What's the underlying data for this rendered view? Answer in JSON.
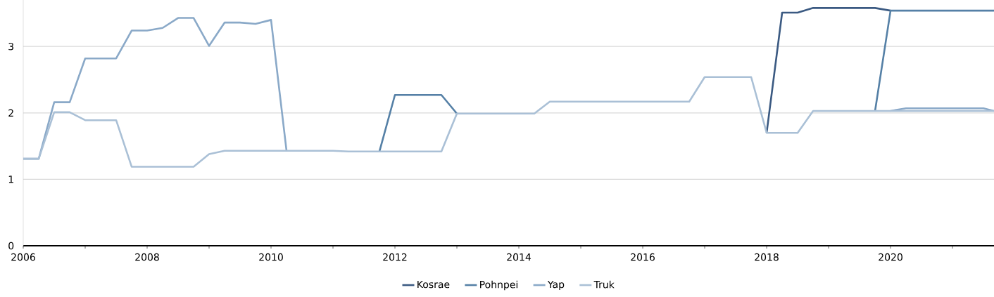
{
  "chart_data": {
    "type": "line",
    "x": [
      2006,
      2006.25,
      2006.5,
      2006.75,
      2007,
      2007.25,
      2007.5,
      2007.75,
      2008,
      2008.25,
      2008.5,
      2008.75,
      2009,
      2009.25,
      2009.5,
      2009.75,
      2010,
      2010.25,
      2010.5,
      2010.75,
      2011,
      2011.25,
      2011.5,
      2011.75,
      2012,
      2012.25,
      2012.5,
      2012.75,
      2013,
      2013.25,
      2013.5,
      2013.75,
      2014,
      2014.25,
      2014.5,
      2014.75,
      2015,
      2015.25,
      2015.5,
      2015.75,
      2016,
      2016.25,
      2016.5,
      2016.75,
      2017,
      2017.25,
      2017.5,
      2017.75,
      2018,
      2018.25,
      2018.5,
      2018.75,
      2019,
      2019.25,
      2019.5,
      2019.75,
      2020,
      2020.25,
      2020.5,
      2020.75,
      2021,
      2021.25,
      2021.5,
      2021.67
    ],
    "series": [
      {
        "name": "Kosrae",
        "color": "#3b5a82",
        "values": [
          null,
          null,
          null,
          null,
          null,
          null,
          null,
          null,
          null,
          null,
          null,
          null,
          null,
          null,
          null,
          null,
          null,
          null,
          null,
          null,
          null,
          null,
          null,
          null,
          null,
          null,
          null,
          null,
          null,
          null,
          null,
          null,
          null,
          null,
          null,
          null,
          null,
          null,
          null,
          null,
          null,
          null,
          null,
          null,
          null,
          null,
          null,
          null,
          1.7,
          3.51,
          3.51,
          3.58,
          3.58,
          3.58,
          3.58,
          3.58,
          3.54,
          null,
          null,
          null,
          null,
          null,
          null,
          null
        ]
      },
      {
        "name": "Pohnpei",
        "color": "#5580a6",
        "values": [
          null,
          null,
          null,
          null,
          null,
          null,
          null,
          null,
          null,
          null,
          null,
          null,
          null,
          null,
          null,
          null,
          null,
          null,
          null,
          null,
          null,
          null,
          null,
          1.42,
          2.27,
          2.27,
          2.27,
          2.27,
          1.99,
          null,
          null,
          null,
          null,
          null,
          null,
          null,
          null,
          null,
          null,
          null,
          null,
          null,
          null,
          null,
          null,
          null,
          null,
          null,
          null,
          null,
          null,
          null,
          null,
          null,
          null,
          2.03,
          3.54,
          3.54,
          3.54,
          3.54,
          3.54,
          3.54,
          3.54,
          3.54
        ]
      },
      {
        "name": "Yap",
        "color": "#8aa9c8",
        "values": [
          1.31,
          1.31,
          2.16,
          2.16,
          2.82,
          2.82,
          2.82,
          3.24,
          3.24,
          3.28,
          3.43,
          3.43,
          3.01,
          3.36,
          3.36,
          3.34,
          3.4,
          1.43,
          null,
          null,
          null,
          null,
          null,
          null,
          null,
          null,
          null,
          null,
          null,
          null,
          null,
          null,
          null,
          null,
          null,
          null,
          null,
          null,
          null,
          null,
          null,
          null,
          null,
          null,
          null,
          null,
          null,
          null,
          null,
          null,
          null,
          null,
          null,
          null,
          null,
          null,
          2.03,
          2.07,
          2.07,
          2.07,
          2.07,
          2.07,
          2.07,
          2.03
        ]
      },
      {
        "name": "Truk",
        "color": "#aac0d6",
        "values": [
          1.31,
          1.31,
          2.01,
          2.01,
          1.89,
          1.89,
          1.89,
          1.19,
          1.19,
          1.19,
          1.19,
          1.19,
          1.38,
          1.43,
          1.43,
          1.43,
          1.43,
          1.43,
          1.43,
          1.43,
          1.43,
          1.42,
          1.42,
          1.42,
          1.42,
          1.42,
          1.42,
          1.42,
          1.99,
          1.99,
          1.99,
          1.99,
          1.99,
          1.99,
          2.17,
          2.17,
          2.17,
          2.17,
          2.17,
          2.17,
          2.17,
          2.17,
          2.17,
          2.17,
          2.54,
          2.54,
          2.54,
          2.54,
          1.7,
          1.7,
          1.7,
          2.03,
          2.03,
          2.03,
          2.03,
          2.03,
          2.03,
          2.03,
          2.03,
          2.03,
          2.03,
          2.03,
          2.03,
          2.03
        ]
      }
    ],
    "xlim": [
      2006,
      2021.67
    ],
    "ylim": [
      0,
      3.7
    ],
    "xticks": [
      2006,
      {
        "value": 2007,
        "label": null
      },
      2008,
      {
        "value": 2009,
        "label": null
      },
      2010,
      {
        "value": 2011,
        "label": null
      },
      2012,
      {
        "value": 2013,
        "label": null
      },
      2014,
      {
        "value": 2015,
        "label": null
      },
      2016,
      {
        "value": 2017,
        "label": null
      },
      2018,
      {
        "value": 2019,
        "label": null
      },
      2020,
      {
        "value": 2021,
        "label": null
      }
    ],
    "yticks": [
      0,
      1,
      2,
      3
    ],
    "grid": "y",
    "legend": "bottom",
    "marker": "none",
    "line_style": "solid"
  }
}
